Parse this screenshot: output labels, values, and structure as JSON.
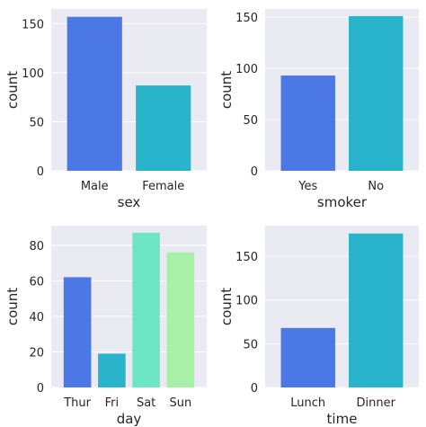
{
  "theme": {
    "plot_background": "#eaeaf2",
    "grid_color": "#ffffff",
    "text_color": "#262626"
  },
  "chart_data": [
    {
      "type": "bar",
      "categories": [
        "Male",
        "Female"
      ],
      "values": [
        157,
        87
      ],
      "colors": [
        "#4c78e6",
        "#2ab4cc"
      ],
      "xlabel": "sex",
      "ylabel": "count",
      "ylim": [
        0,
        165
      ],
      "yticks": [
        0,
        50,
        100,
        150
      ],
      "grid": true
    },
    {
      "type": "bar",
      "categories": [
        "Yes",
        "No"
      ],
      "values": [
        93,
        151
      ],
      "colors": [
        "#4c78e6",
        "#2ab4cc"
      ],
      "xlabel": "smoker",
      "ylabel": "count",
      "ylim": [
        0,
        158
      ],
      "yticks": [
        0,
        50,
        100,
        150
      ],
      "grid": true
    },
    {
      "type": "bar",
      "categories": [
        "Thur",
        "Fri",
        "Sat",
        "Sun"
      ],
      "values": [
        62,
        19,
        87,
        76
      ],
      "colors": [
        "#4c78e6",
        "#2ab4cc",
        "#6ee6c4",
        "#a8f0a8"
      ],
      "xlabel": "day",
      "ylabel": "count",
      "ylim": [
        0,
        91
      ],
      "yticks": [
        0,
        20,
        40,
        60,
        80
      ],
      "grid": true
    },
    {
      "type": "bar",
      "categories": [
        "Lunch",
        "Dinner"
      ],
      "values": [
        68,
        176
      ],
      "colors": [
        "#4c78e6",
        "#2ab4cc"
      ],
      "xlabel": "time",
      "ylabel": "count",
      "ylim": [
        0,
        185
      ],
      "yticks": [
        0,
        50,
        100,
        150
      ],
      "grid": true
    }
  ]
}
